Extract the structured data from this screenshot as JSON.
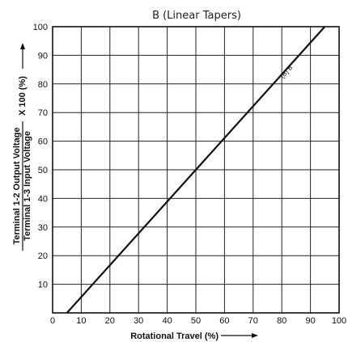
{
  "chart_data": {
    "type": "line",
    "title": "B (Linear Tapers)",
    "xlabel": "Rotational Travel (%)",
    "ylabel_numerator": "Terminal 1-2 Output Voltage",
    "ylabel_denominator": "Terminal 1-3 Input Voltage",
    "ylabel_factor": "X 100 (%)",
    "xlim": [
      0,
      100
    ],
    "ylim": [
      0,
      100
    ],
    "x_ticks": [
      "0",
      "10",
      "20",
      "30",
      "40",
      "50",
      "60",
      "70",
      "80",
      "90",
      "100"
    ],
    "y_ticks": [
      "10",
      "20",
      "30",
      "40",
      "50",
      "60",
      "70",
      "80",
      "90",
      "100"
    ],
    "grid": true,
    "series": [
      {
        "name": "(B) B",
        "x": [
          5,
          95
        ],
        "y": [
          0,
          100
        ]
      }
    ],
    "annotation": {
      "text": "(B) B",
      "x": 83,
      "y": 83
    }
  }
}
